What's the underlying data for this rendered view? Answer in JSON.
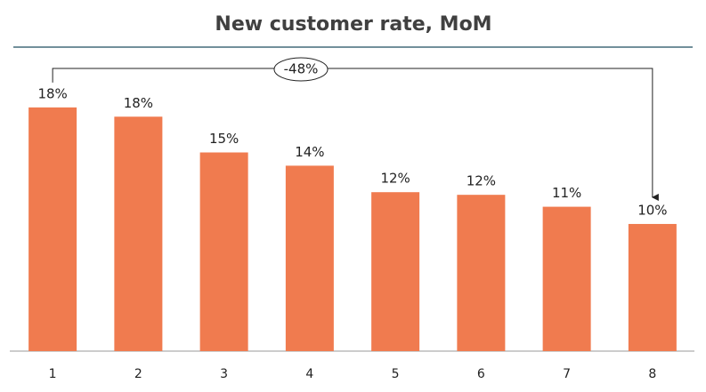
{
  "chart_data": {
    "type": "bar",
    "title": "New customer rate, MoM",
    "categories": [
      "1",
      "2",
      "3",
      "4",
      "5",
      "6",
      "7",
      "8"
    ],
    "values": [
      18.4,
      17.7,
      15.0,
      14.0,
      12.0,
      11.8,
      10.9,
      9.6
    ],
    "value_labels": [
      "18%",
      "18%",
      "15%",
      "14%",
      "12%",
      "12%",
      "11%",
      "10%"
    ],
    "color": "#f07b4f",
    "ylim": [
      0,
      20
    ],
    "annotation": "-48%"
  }
}
